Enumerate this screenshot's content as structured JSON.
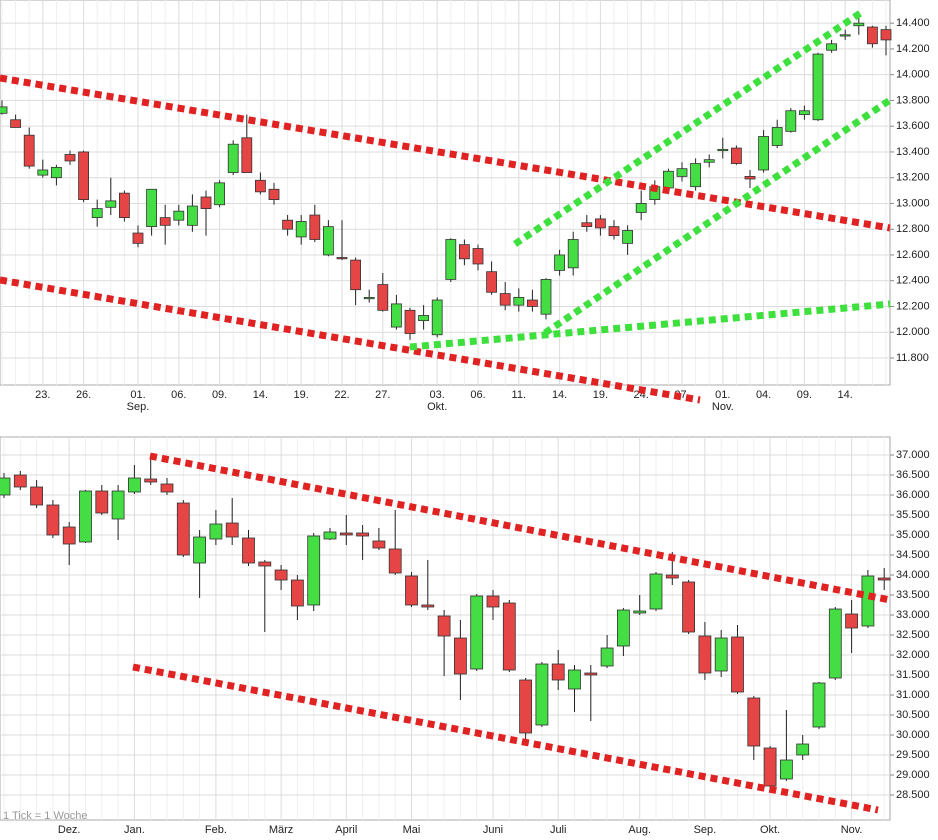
{
  "chart_data": [
    {
      "type": "candlestick",
      "categories": [
        null,
        null,
        null,
        "23.",
        null,
        null,
        "26.",
        null,
        null,
        null,
        "01.",
        null,
        null,
        "06.",
        null,
        null,
        "09.",
        null,
        null,
        "14.",
        null,
        null,
        "19.",
        null,
        null,
        "22.",
        null,
        null,
        "27.",
        null,
        null,
        null,
        "03.",
        null,
        null,
        "06.",
        null,
        null,
        "11.",
        null,
        null,
        "14.",
        null,
        null,
        "19.",
        null,
        null,
        "24.",
        null,
        null,
        "27.",
        null,
        null,
        "01.",
        null,
        null,
        "04.",
        null,
        null,
        "09.",
        null,
        null,
        "14.",
        null,
        null,
        null
      ],
      "months": [
        null,
        null,
        null,
        null,
        null,
        null,
        null,
        null,
        null,
        null,
        "Sep.",
        null,
        null,
        null,
        null,
        null,
        null,
        null,
        null,
        null,
        null,
        null,
        null,
        null,
        null,
        null,
        null,
        null,
        null,
        null,
        null,
        null,
        "Okt.",
        null,
        null,
        null,
        null,
        null,
        null,
        null,
        null,
        null,
        null,
        null,
        null,
        null,
        null,
        null,
        null,
        null,
        null,
        null,
        null,
        "Nov.",
        null,
        null,
        null,
        null,
        null,
        null,
        null,
        null,
        null,
        null,
        null,
        null
      ],
      "open": [
        13700,
        13650,
        13530,
        13220,
        13200,
        13380,
        13400,
        12890,
        12970,
        13080,
        12770,
        12820,
        12890,
        12870,
        12830,
        13050,
        12990,
        13240,
        13510,
        13180,
        13110,
        12870,
        12740,
        12910,
        12600,
        12580,
        12560,
        12260,
        12370,
        12040,
        12170,
        12090,
        11980,
        12410,
        12680,
        12650,
        12470,
        12300,
        12210,
        12250,
        12140,
        12480,
        12500,
        12850,
        12880,
        12820,
        12690,
        12930,
        13030,
        13120,
        13210,
        13130,
        13320,
        13410,
        13430,
        13210,
        13260,
        13450,
        13560,
        13690,
        13650,
        14190,
        14300,
        14380,
        14370,
        14350
      ],
      "high": [
        13800,
        13690,
        13590,
        13340,
        13300,
        13410,
        13410,
        13030,
        13200,
        13100,
        12830,
        13110,
        12990,
        12990,
        13070,
        13100,
        13180,
        13490,
        13690,
        13240,
        13160,
        12910,
        12910,
        12990,
        12870,
        12870,
        12580,
        12330,
        12460,
        12290,
        12190,
        12210,
        12270,
        12730,
        12720,
        12680,
        12550,
        12390,
        12340,
        12330,
        12420,
        12640,
        12780,
        12910,
        12910,
        12870,
        12830,
        13100,
        13180,
        13270,
        13320,
        13350,
        13380,
        13510,
        13450,
        13260,
        13570,
        13650,
        13740,
        13760,
        14170,
        14270,
        14350,
        14460,
        14380,
        14380
      ],
      "low": [
        13690,
        13590,
        13270,
        13200,
        13140,
        13300,
        13010,
        12820,
        12910,
        12860,
        12660,
        12750,
        12680,
        12830,
        12780,
        12750,
        12970,
        13220,
        13240,
        13070,
        12990,
        12750,
        12680,
        12700,
        12590,
        12560,
        12210,
        12230,
        12160,
        12020,
        11940,
        12020,
        11960,
        12390,
        12520,
        12480,
        12290,
        12170,
        12160,
        12160,
        12100,
        12440,
        12440,
        12780,
        12750,
        12720,
        12600,
        12870,
        12990,
        13090,
        13170,
        13100,
        13280,
        13350,
        13300,
        13120,
        13240,
        13430,
        13550,
        13650,
        13640,
        14170,
        14270,
        14310,
        14210,
        14150
      ],
      "close": [
        13750,
        13590,
        13290,
        13260,
        13280,
        13330,
        13030,
        12960,
        13020,
        12890,
        12690,
        13110,
        12830,
        12940,
        12980,
        12960,
        13160,
        13460,
        13240,
        13090,
        13030,
        12800,
        12860,
        12720,
        12820,
        12570,
        12330,
        12270,
        12170,
        12220,
        11990,
        12130,
        12250,
        12720,
        12570,
        12530,
        12310,
        12210,
        12270,
        12200,
        12410,
        12600,
        12720,
        12820,
        12810,
        12750,
        12790,
        13000,
        13130,
        13250,
        13270,
        13310,
        13340,
        13420,
        13310,
        13190,
        13520,
        13590,
        13720,
        13720,
        14160,
        14240,
        14310,
        14400,
        14240,
        14270
      ],
      "up_color": "#44dd44",
      "down_color": "#e64545",
      "ylim": [
        11590,
        14580
      ],
      "yticks": [
        {
          "value": 11800,
          "label": "11.800"
        },
        {
          "value": 12000,
          "label": "12.000"
        },
        {
          "value": 12200,
          "label": "12.200"
        },
        {
          "value": 12400,
          "label": "12.400"
        },
        {
          "value": 12600,
          "label": "12.600"
        },
        {
          "value": 12800,
          "label": "12.800"
        },
        {
          "value": 13000,
          "label": "13.000"
        },
        {
          "value": 13200,
          "label": "13.200"
        },
        {
          "value": 13400,
          "label": "13.400"
        },
        {
          "value": 13600,
          "label": "13.600"
        },
        {
          "value": 13800,
          "label": "13.800"
        },
        {
          "value": 14000,
          "label": "14.000"
        },
        {
          "value": 14200,
          "label": "14.200"
        },
        {
          "value": 14400,
          "label": "14.400"
        }
      ],
      "grid": true
    },
    {
      "type": "candlestick",
      "categories": [
        null,
        null,
        null,
        null,
        "Dez.",
        null,
        null,
        null,
        "Jan.",
        null,
        null,
        null,
        null,
        "Feb.",
        null,
        null,
        null,
        "März",
        null,
        null,
        null,
        "April",
        null,
        null,
        null,
        "Mai",
        null,
        null,
        null,
        null,
        "Juni",
        null,
        null,
        null,
        "Juli",
        null,
        null,
        null,
        null,
        "Aug.",
        null,
        null,
        null,
        "Sep.",
        null,
        null,
        null,
        "Okt.",
        null,
        null,
        null,
        null,
        "Nov.",
        null,
        null
      ],
      "open": [
        36000,
        36500,
        36200,
        35750,
        35200,
        34825,
        36100,
        35400,
        36075,
        36400,
        36275,
        35800,
        34300,
        34900,
        35300,
        34925,
        34325,
        34125,
        33875,
        33250,
        34900,
        35050,
        35050,
        34850,
        34650,
        33975,
        33250,
        32975,
        32425,
        31650,
        33475,
        33300,
        31375,
        30250,
        31775,
        31150,
        31550,
        31725,
        32225,
        33050,
        33150,
        34000,
        33825,
        32475,
        31600,
        32450,
        30925,
        29675,
        28900,
        29500,
        30200,
        31425,
        33025,
        32725,
        33925
      ],
      "high": [
        36550,
        36600,
        36375,
        35875,
        35325,
        36125,
        36250,
        36250,
        36750,
        37000,
        36425,
        35875,
        35125,
        35625,
        35925,
        35125,
        34375,
        34250,
        34000,
        35050,
        35175,
        35500,
        35250,
        35175,
        35625,
        34075,
        34375,
        33125,
        32875,
        33525,
        33625,
        33375,
        31425,
        31825,
        32125,
        31750,
        31750,
        32500,
        33175,
        33500,
        34075,
        34575,
        33875,
        32825,
        32625,
        32750,
        30975,
        29725,
        30625,
        30000,
        31325,
        33200,
        33375,
        34125,
        34175
      ],
      "low": [
        35925,
        36125,
        35675,
        34925,
        34250,
        34800,
        35500,
        34875,
        36025,
        36250,
        36000,
        34450,
        33425,
        34750,
        34750,
        34225,
        32575,
        33625,
        32875,
        33100,
        34875,
        34750,
        34375,
        34625,
        34000,
        33200,
        33125,
        31475,
        30875,
        31600,
        32875,
        31575,
        29750,
        30200,
        31125,
        30575,
        30350,
        31675,
        31975,
        33000,
        33100,
        33750,
        32525,
        31375,
        31450,
        31025,
        29375,
        28625,
        28850,
        29375,
        30150,
        31375,
        32050,
        32675,
        33625
      ],
      "close": [
        36425,
        36200,
        35750,
        35000,
        34775,
        36100,
        35550,
        36100,
        36425,
        36325,
        36075,
        34500,
        34950,
        35275,
        34950,
        34300,
        34225,
        33875,
        33225,
        34975,
        35075,
        35000,
        34975,
        34675,
        34050,
        33250,
        33200,
        32475,
        31525,
        33475,
        33200,
        31625,
        30050,
        31775,
        31375,
        31625,
        31500,
        32175,
        33125,
        33100,
        34025,
        33925,
        32575,
        31550,
        32425,
        31075,
        29725,
        28725,
        29375,
        29775,
        31300,
        33150,
        32675,
        33975,
        33875
      ],
      "up_color": "#44dd44",
      "down_color": "#e64545",
      "ylim": [
        27875,
        37450
      ],
      "yticks": [
        {
          "value": 28500,
          "label": "28.500"
        },
        {
          "value": 29000,
          "label": "29.000"
        },
        {
          "value": 29500,
          "label": "29.500"
        },
        {
          "value": 30000,
          "label": "30.000"
        },
        {
          "value": 30500,
          "label": "30.500"
        },
        {
          "value": 31000,
          "label": "31.000"
        },
        {
          "value": 31500,
          "label": "31.500"
        },
        {
          "value": 32000,
          "label": "32.000"
        },
        {
          "value": 32500,
          "label": "32.500"
        },
        {
          "value": 33000,
          "label": "33.000"
        },
        {
          "value": 33500,
          "label": "33.500"
        },
        {
          "value": 34000,
          "label": "34.000"
        },
        {
          "value": 34500,
          "label": "34.500"
        },
        {
          "value": 35000,
          "label": "35.000"
        },
        {
          "value": 35500,
          "label": "35.500"
        },
        {
          "value": 36000,
          "label": "36.000"
        },
        {
          "value": 36500,
          "label": "36.500"
        },
        {
          "value": 37000,
          "label": "37.000"
        }
      ],
      "grid": true,
      "note": "1 Tick = 1 Woche"
    }
  ]
}
